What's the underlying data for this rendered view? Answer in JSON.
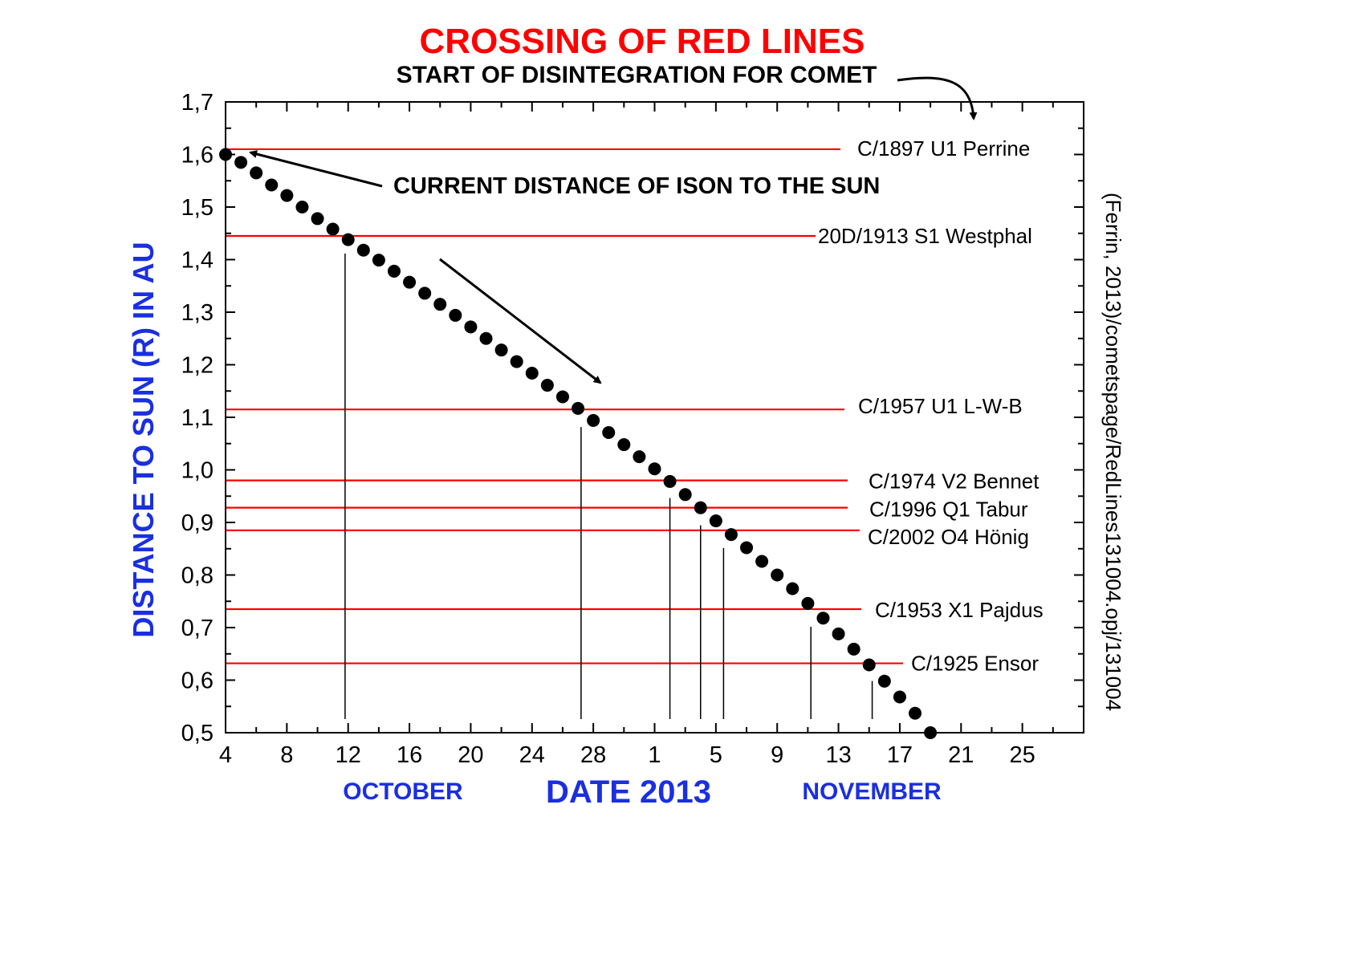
{
  "chart_data": {
    "type": "scatter",
    "title": "CROSSING OF RED LINES",
    "subtitle": "START OF DISINTEGRATION FOR COMET",
    "xlabel": "DATE 2013",
    "ylabel": "DISTANCE TO SUN (R) IN AU",
    "month_labels": [
      "OCTOBER",
      "NOVEMBER"
    ],
    "source_note": "(Ferrin, 2013)/cometspage/RedLines131004.opj/131004",
    "annotation": "CURRENT DISTANCE OF ISON TO THE SUN",
    "x_start_day": 4,
    "x_end_day": 60,
    "x_ticks": [
      {
        "day": 4,
        "label": "4"
      },
      {
        "day": 8,
        "label": "8"
      },
      {
        "day": 12,
        "label": "12"
      },
      {
        "day": 16,
        "label": "16"
      },
      {
        "day": 20,
        "label": "20"
      },
      {
        "day": 24,
        "label": "24"
      },
      {
        "day": 28,
        "label": "28"
      },
      {
        "day": 32,
        "label": "1"
      },
      {
        "day": 36,
        "label": "5"
      },
      {
        "day": 40,
        "label": "9"
      },
      {
        "day": 44,
        "label": "13"
      },
      {
        "day": 48,
        "label": "17"
      },
      {
        "day": 52,
        "label": "21"
      },
      {
        "day": 56,
        "label": "25"
      }
    ],
    "ylim": [
      0.5,
      1.7
    ],
    "y_ticks": [
      {
        "value": 1.7,
        "label": "1,7"
      },
      {
        "value": 1.6,
        "label": "1,6"
      },
      {
        "value": 1.5,
        "label": "1,5"
      },
      {
        "value": 1.4,
        "label": "1,4"
      },
      {
        "value": 1.3,
        "label": "1,3"
      },
      {
        "value": 1.2,
        "label": "1,2"
      },
      {
        "value": 1.1,
        "label": "1,1"
      },
      {
        "value": 1.0,
        "label": "1,0"
      },
      {
        "value": 0.9,
        "label": "0,9"
      },
      {
        "value": 0.8,
        "label": "0,8"
      },
      {
        "value": 0.7,
        "label": "0,7"
      },
      {
        "value": 0.6,
        "label": "0,6"
      },
      {
        "value": 0.5,
        "label": "0,5"
      }
    ],
    "red_lines": [
      {
        "name": "C/1897 U1 Perrine",
        "value": 1.61,
        "cross_day": null
      },
      {
        "name": "20D/1913 S1 Westphal",
        "value": 1.445,
        "cross_day": 11.8
      },
      {
        "name": "C/1957 U1 L-W-B",
        "value": 1.115,
        "cross_day": 27.2
      },
      {
        "name": "C/1974 V2 Bennet",
        "value": 0.98,
        "cross_day": 33.0
      },
      {
        "name": "C/1996 Q1 Tabur",
        "value": 0.928,
        "cross_day": 35.0
      },
      {
        "name": "C/2002 O4 Hönig",
        "value": 0.885,
        "cross_day": 36.5
      },
      {
        "name": "C/1953 X1 Pajdus",
        "value": 0.735,
        "cross_day": 42.2
      },
      {
        "name": "C/1925 Ensor",
        "value": 0.632,
        "cross_day": 46.2
      }
    ],
    "series": [
      {
        "x": [
          4,
          5,
          6,
          7,
          8,
          9,
          10,
          11,
          12,
          13,
          14,
          15,
          16,
          17,
          18,
          19,
          20,
          21,
          22,
          23,
          24,
          25,
          26,
          27,
          28,
          29,
          30,
          31,
          32,
          33,
          34,
          35,
          36,
          37,
          38,
          39,
          40,
          41,
          42,
          43,
          44,
          45,
          46,
          47,
          48,
          49,
          50
        ],
        "values": [
          1.6,
          1.585,
          1.565,
          1.542,
          1.522,
          1.5,
          1.478,
          1.458,
          1.438,
          1.418,
          1.399,
          1.378,
          1.357,
          1.336,
          1.315,
          1.294,
          1.272,
          1.25,
          1.228,
          1.206,
          1.184,
          1.161,
          1.139,
          1.117,
          1.094,
          1.071,
          1.048,
          1.025,
          1.002,
          0.978,
          0.953,
          0.928,
          0.903,
          0.877,
          0.852,
          0.826,
          0.8,
          0.774,
          0.746,
          0.718,
          0.688,
          0.659,
          0.629,
          0.598,
          0.568,
          0.537,
          0.5
        ]
      }
    ]
  }
}
